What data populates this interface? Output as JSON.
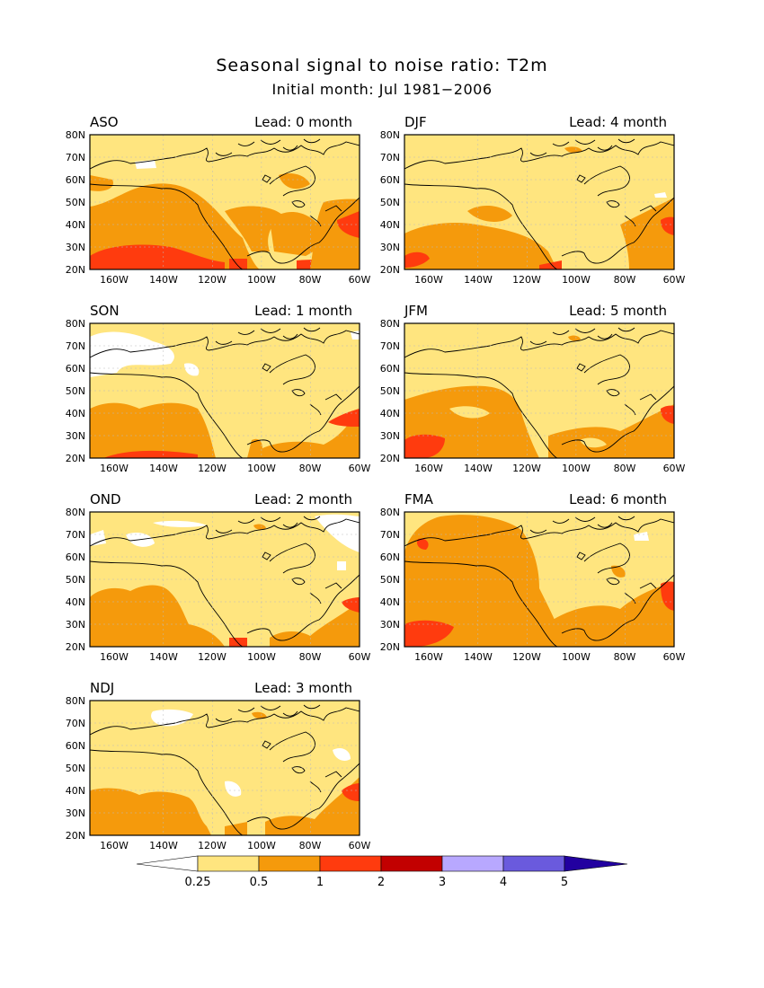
{
  "title": "Seasonal signal to noise ratio: T2m",
  "subtitle": "Initial month: Jul 1981−2006",
  "lat_labels": [
    "80N",
    "70N",
    "60N",
    "50N",
    "40N",
    "30N",
    "20N"
  ],
  "lon_labels": [
    "160W",
    "140W",
    "120W",
    "100W",
    "80W",
    "60W"
  ],
  "panels": [
    {
      "season": "ASO",
      "lead": "Lead: 0 month"
    },
    {
      "season": "DJF",
      "lead": "Lead: 4 month"
    },
    {
      "season": "SON",
      "lead": "Lead: 1 month"
    },
    {
      "season": "JFM",
      "lead": "Lead: 5 month"
    },
    {
      "season": "OND",
      "lead": "Lead: 2 month"
    },
    {
      "season": "FMA",
      "lead": "Lead: 6 month"
    },
    {
      "season": "NDJ",
      "lead": "Lead: 3 month"
    }
  ],
  "colorbar": {
    "ticks": [
      "0.25",
      "0.5",
      "1",
      "2",
      "3",
      "4",
      "5"
    ],
    "colors": [
      "#ffffff",
      "#ffe57f",
      "#f59a0c",
      "#ff3b0e",
      "#c20000",
      "#b8a8ff",
      "#6a5add",
      "#2200a0"
    ]
  }
}
